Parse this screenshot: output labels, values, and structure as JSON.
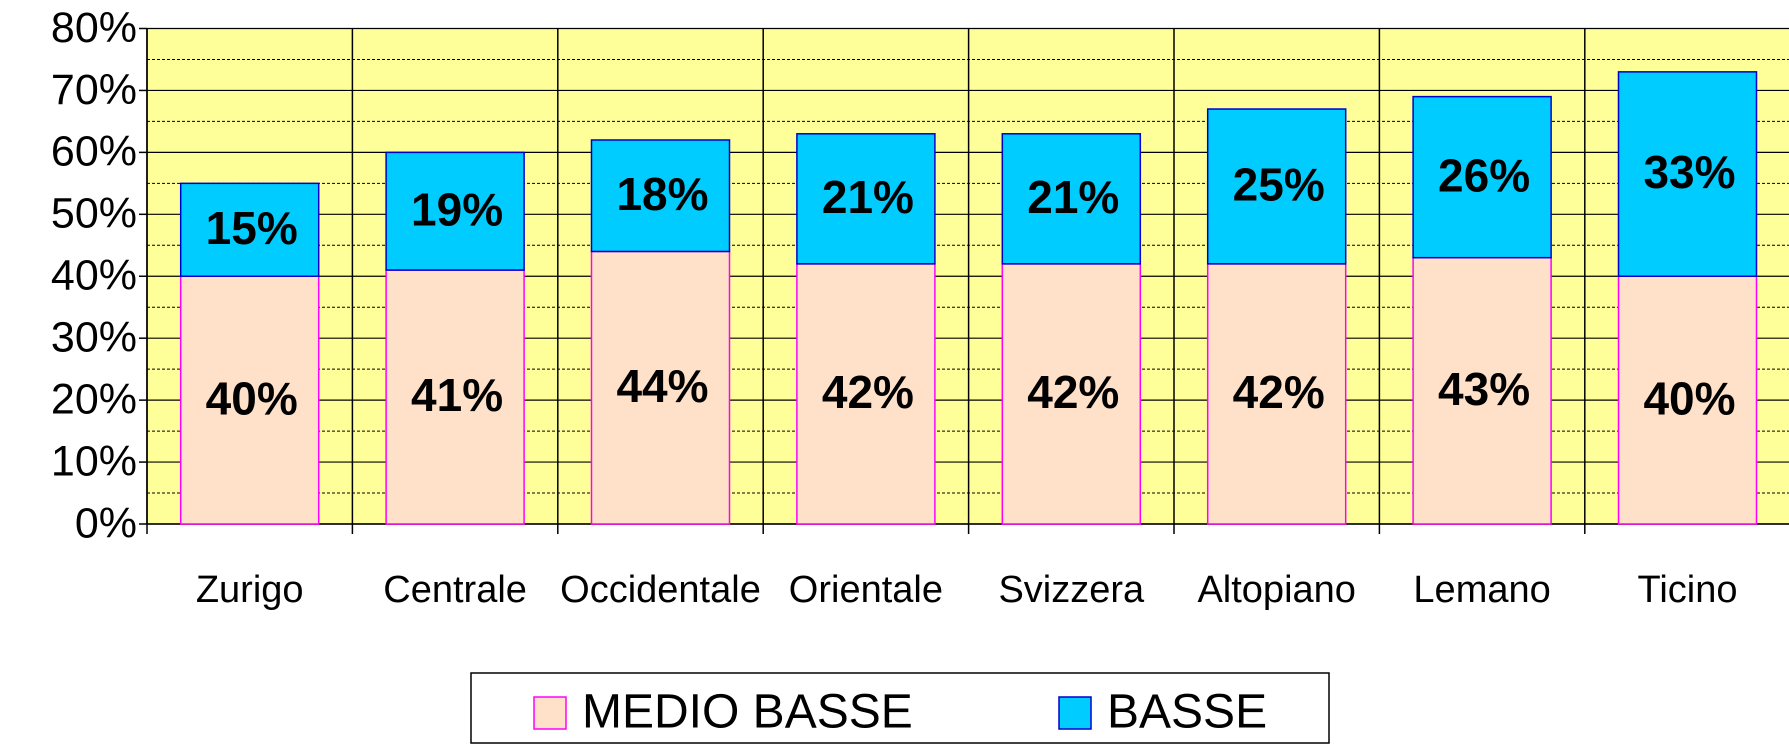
{
  "chart_data": {
    "type": "stacked_bar",
    "categories": [
      "Zurigo",
      "Centrale",
      "Occidentale",
      "Orientale",
      "Svizzera",
      "Altopiano",
      "Lemano",
      "Ticino"
    ],
    "series": [
      {
        "name": "MEDIO BASSE",
        "color": "#ffe0c8",
        "values": [
          40,
          41,
          44,
          42,
          42,
          42,
          43,
          40
        ],
        "value_labels": [
          "40%",
          "41%",
          "44%",
          "42%",
          "42%",
          "42%",
          "43%",
          "40%"
        ]
      },
      {
        "name": "BASSE",
        "color": "#00ccff",
        "values": [
          15,
          19,
          18,
          21,
          21,
          25,
          26,
          33
        ],
        "value_labels": [
          "15%",
          "19%",
          "18%",
          "21%",
          "21%",
          "25%",
          "26%",
          "33%"
        ]
      }
    ],
    "ylim": [
      0,
      80
    ],
    "yticks": [
      {
        "value": 0,
        "label": "0%"
      },
      {
        "value": 10,
        "label": "10%"
      },
      {
        "value": 20,
        "label": "20%"
      },
      {
        "value": 30,
        "label": "30%"
      },
      {
        "value": 40,
        "label": "40%"
      },
      {
        "value": 50,
        "label": "50%"
      },
      {
        "value": 60,
        "label": "60%"
      },
      {
        "value": 70,
        "label": "70%"
      },
      {
        "value": 80,
        "label": "80%"
      }
    ],
    "minor_yticks": [
      5,
      15,
      25,
      35,
      45,
      55,
      65,
      75
    ],
    "grid": true,
    "legend": "bottom",
    "plot_background": "#ffff99"
  }
}
